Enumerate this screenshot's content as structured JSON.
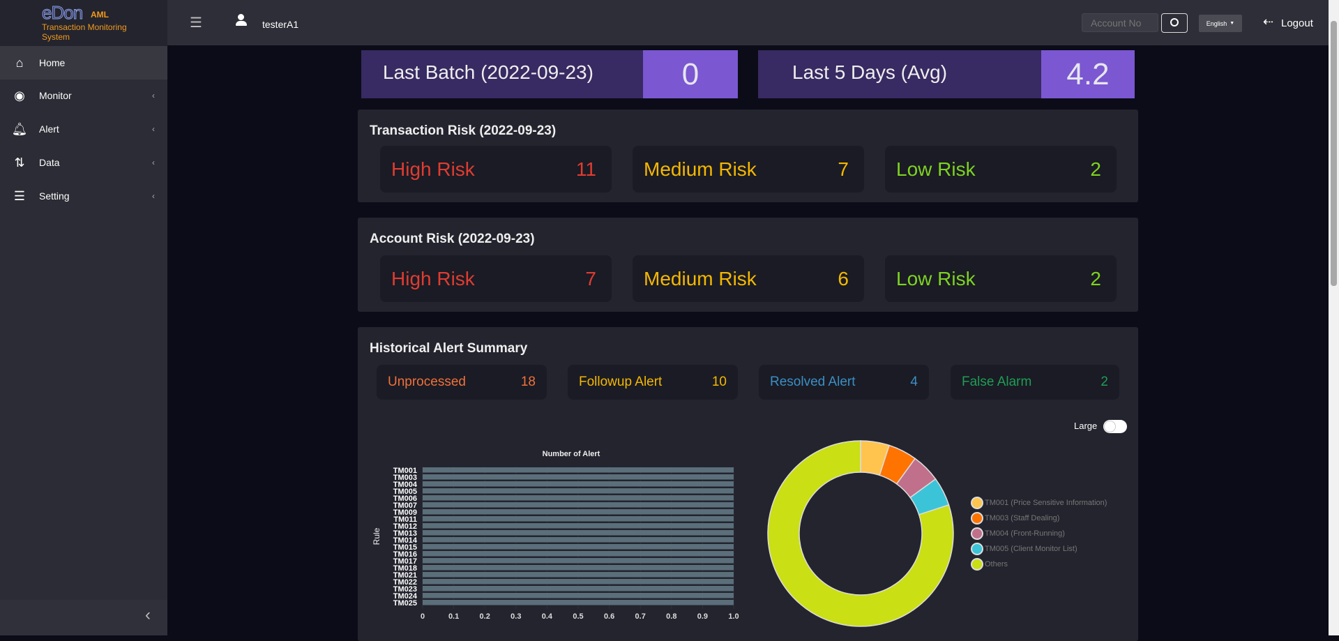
{
  "brand": {
    "logo": "eDon",
    "aml": "AML",
    "subtitle": "Transaction Monitoring System"
  },
  "sidebar": {
    "items": [
      {
        "label": "Home",
        "icon": "home-icon",
        "active": true
      },
      {
        "label": "Monitor",
        "icon": "eye-icon"
      },
      {
        "label": "Alert",
        "icon": "bell-icon"
      },
      {
        "label": "Data",
        "icon": "sort-arrows-icon"
      },
      {
        "label": "Setting",
        "icon": "bars-icon"
      }
    ]
  },
  "header": {
    "user": "testerA1",
    "account_placeholder": "Account No",
    "language": "English",
    "logout": "Logout"
  },
  "summary": {
    "last_batch_label": "Last Batch (2022-09-23)",
    "last_batch_value": "0",
    "last5_label": "Last 5 Days (Avg)",
    "last5_value": "4.2"
  },
  "transaction_risk": {
    "title": "Transaction Risk (2022-09-23)",
    "items": [
      {
        "label": "High Risk",
        "value": "11",
        "color": "#e03c31"
      },
      {
        "label": "Medium Risk",
        "value": "7",
        "color": "#f5b800"
      },
      {
        "label": "Low Risk",
        "value": "2",
        "color": "#7ed321"
      }
    ]
  },
  "account_risk": {
    "title": "Account Risk (2022-09-23)",
    "items": [
      {
        "label": "High Risk",
        "value": "7",
        "color": "#e03c31"
      },
      {
        "label": "Medium Risk",
        "value": "6",
        "color": "#f5b800"
      },
      {
        "label": "Low Risk",
        "value": "2",
        "color": "#7ed321"
      }
    ]
  },
  "historical": {
    "title": "Historical Alert Summary",
    "items": [
      {
        "label": "Unprocessed",
        "value": "18",
        "color": "#f0713a"
      },
      {
        "label": "Followup Alert",
        "value": "10",
        "color": "#f5b800"
      },
      {
        "label": "Resolved Alert",
        "value": "4",
        "color": "#3b8fc4"
      },
      {
        "label": "False Alarm",
        "value": "2",
        "color": "#1f9d55"
      }
    ],
    "toggle_label": "Large",
    "toggle_on": false
  },
  "chart_data": [
    {
      "type": "bar",
      "orientation": "horizontal",
      "title": "Number of Alert",
      "ylabel": "Rule",
      "xlabel": "",
      "categories": [
        "TM001",
        "TM003",
        "TM004",
        "TM005",
        "TM006",
        "TM007",
        "TM009",
        "TM011",
        "TM012",
        "TM013",
        "TM014",
        "TM015",
        "TM016",
        "TM017",
        "TM018",
        "TM021",
        "TM022",
        "TM023",
        "TM024",
        "TM025"
      ],
      "values": [
        1,
        1,
        1,
        1,
        1,
        1,
        1,
        1,
        1,
        1,
        1,
        1,
        1,
        1,
        1,
        1,
        1,
        1,
        1,
        1
      ],
      "xlim": [
        0,
        1.0
      ],
      "xticks": [
        "0",
        "0.1",
        "0.2",
        "0.3",
        "0.4",
        "0.5",
        "0.6",
        "0.7",
        "0.8",
        "0.9",
        "1.0"
      ],
      "bar_color": "#5b6f7b"
    },
    {
      "type": "pie",
      "donut": true,
      "legend": "right",
      "labels": [
        "TM001 (Price Sensitive Information)",
        "TM003 (Staff Dealing)",
        "TM004 (Front-Running)",
        "TM005 (Client Monitor List)",
        "Others"
      ],
      "values": [
        1,
        1,
        1,
        1,
        16
      ],
      "colors": [
        "#ffc44d",
        "#ff7300",
        "#c0708a",
        "#3bc4d8",
        "#cadf14"
      ]
    }
  ]
}
